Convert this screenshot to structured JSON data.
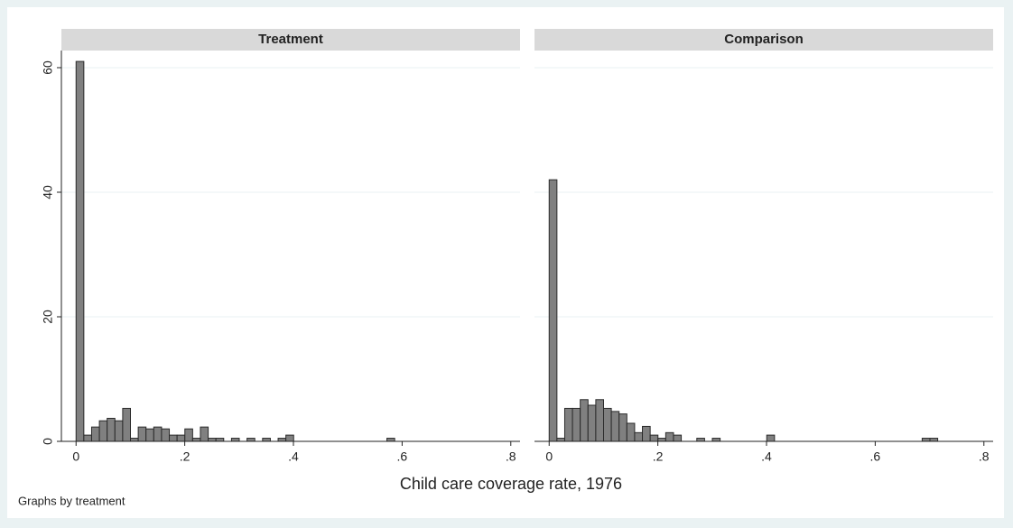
{
  "chart_data": {
    "type": "histogram",
    "xlabel": "Child care coverage rate, 1976",
    "note": "Graphs by treatment",
    "color": "#808080",
    "bins": [
      0,
      0.0143,
      0.0286,
      0.0429,
      0.0572,
      0.0715,
      0.0858,
      0.1001,
      0.1144,
      0.1287,
      0.143,
      0.1573,
      0.1716,
      0.1859,
      0.2002,
      0.2145,
      0.2288,
      0.2431,
      0.2574,
      0.2717,
      0.286,
      0.3003,
      0.3146,
      0.3289,
      0.3432,
      0.3575,
      0.3718,
      0.3861,
      0.4004,
      0.4147,
      0.429,
      0.4433,
      0.4576,
      0.4719,
      0.4862,
      0.5005,
      0.5148,
      0.5291,
      0.5434,
      0.5577,
      0.572,
      0.5863,
      0.6006,
      0.6149,
      0.6292,
      0.6435,
      0.6578,
      0.6721,
      0.6864,
      0.7007,
      0.715
    ],
    "xlim": [
      -0.027,
      0.817
    ],
    "ylim": [
      0,
      62.75
    ],
    "xticks": [
      0,
      {
        "value": 0.2,
        "label": ".2"
      },
      {
        "value": 0.4,
        "label": ".4"
      },
      {
        "value": 0.6,
        "label": ".6"
      },
      {
        "value": 0.8,
        "label": ".8"
      }
    ],
    "yticks": [
      0,
      20,
      40,
      60
    ],
    "grid": true,
    "panels": [
      {
        "title": "Treatment",
        "values": [
          61,
          1,
          2.3,
          3.3,
          3.7,
          3.3,
          5.3,
          0.5,
          2.3,
          2,
          2.3,
          2,
          1,
          1,
          2,
          0.5,
          2.3,
          0.5,
          0.5,
          0,
          0.5,
          0,
          0.5,
          0,
          0.5,
          0,
          0.5,
          1,
          0,
          0,
          0,
          0,
          0,
          0,
          0,
          0,
          0,
          0,
          0,
          0,
          0.5,
          0,
          0,
          0,
          0,
          0,
          0,
          0,
          0,
          0
        ]
      },
      {
        "title": "Comparison",
        "values": [
          42,
          0.5,
          5.3,
          5.3,
          6.7,
          5.8,
          6.7,
          5.3,
          4.8,
          4.4,
          2.9,
          1.4,
          2.4,
          1,
          0.5,
          1.4,
          1,
          0,
          0,
          0.5,
          0,
          0.5,
          0,
          0,
          0,
          0,
          0,
          0,
          1,
          0,
          0,
          0,
          0,
          0,
          0,
          0,
          0,
          0,
          0,
          0,
          0,
          0,
          0,
          0,
          0,
          0,
          0,
          0,
          0.5,
          0.5
        ]
      }
    ]
  }
}
